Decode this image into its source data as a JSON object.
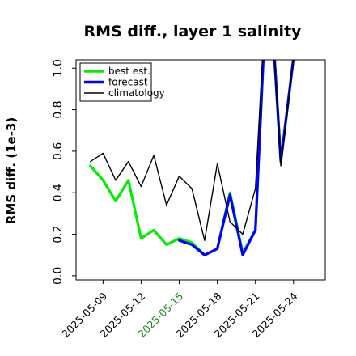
{
  "chart_data": {
    "type": "line",
    "title": "RMS diff., layer 1 salinity",
    "xlabel": "",
    "ylabel": "RMS diff. (1e-3)",
    "ylim": [
      -0.02,
      1.04
    ],
    "xlim": [
      "2025-05-06T21:00",
      "2025-05-26T12:00"
    ],
    "yticks": [
      0.0,
      0.2,
      0.4,
      0.6,
      0.8,
      1.0
    ],
    "ytick_labels": [
      "0.0",
      "0.2",
      "0.4",
      "0.6",
      "0.8",
      "1.0"
    ],
    "xticks": [
      "2025-05-09",
      "2025-05-12",
      "2025-05-15",
      "2025-05-18",
      "2025-05-21",
      "2025-05-24"
    ],
    "xtick_labels": [
      "2025-05-09",
      "2025-05-12",
      "2025-05-15",
      "2025-05-18",
      "2025-05-21",
      "2025-05-24"
    ],
    "highlight_tick": "2025-05-15",
    "highlight_color": "#228b22",
    "grid": false,
    "legend_position": "top-left",
    "series": [
      {
        "name": "best est.",
        "color": "#00ee00",
        "x": [
          "2025-05-08",
          "2025-05-09",
          "2025-05-10",
          "2025-05-11",
          "2025-05-12",
          "2025-05-13",
          "2025-05-14",
          "2025-05-15",
          "2025-05-16",
          "2025-05-17",
          "2025-05-18",
          "2025-05-19",
          "2025-05-20",
          "2025-05-21",
          "2025-05-22",
          "2025-05-23",
          "2025-05-24"
        ],
        "values": [
          0.53,
          0.46,
          0.36,
          0.46,
          0.18,
          0.22,
          0.15,
          0.18,
          0.16,
          0.1,
          0.13,
          0.4,
          0.11,
          0.22,
          1.55,
          0.55,
          1.05
        ]
      },
      {
        "name": "forecast",
        "color": "#0000ff",
        "x": [
          "2025-05-15",
          "2025-05-16",
          "2025-05-17",
          "2025-05-18",
          "2025-05-19",
          "2025-05-20",
          "2025-05-21",
          "2025-05-22",
          "2025-05-23",
          "2025-05-24"
        ],
        "values": [
          0.17,
          0.15,
          0.1,
          0.13,
          0.39,
          0.1,
          0.22,
          1.55,
          0.55,
          1.05
        ]
      },
      {
        "name": "climatology",
        "color": "#000000",
        "x": [
          "2025-05-08",
          "2025-05-09",
          "2025-05-10",
          "2025-05-11",
          "2025-05-12",
          "2025-05-13",
          "2025-05-14",
          "2025-05-15",
          "2025-05-16",
          "2025-05-17",
          "2025-05-18",
          "2025-05-19",
          "2025-05-20",
          "2025-05-21",
          "2025-05-22",
          "2025-05-23",
          "2025-05-24"
        ],
        "values": [
          0.55,
          0.59,
          0.46,
          0.55,
          0.43,
          0.58,
          0.34,
          0.48,
          0.42,
          0.17,
          0.54,
          0.26,
          0.2,
          0.42,
          1.55,
          0.53,
          1.05
        ]
      }
    ]
  }
}
